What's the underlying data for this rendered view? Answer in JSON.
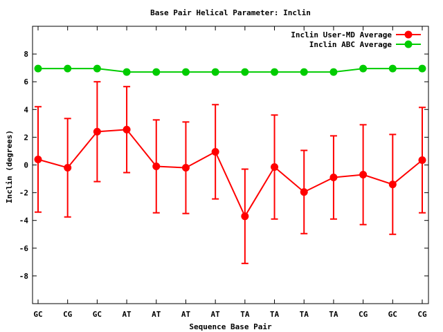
{
  "chart_data": {
    "type": "line",
    "title": "Base Pair Helical Parameter: Inclin",
    "xlabel": "Sequence Base Pair",
    "ylabel": "Inclin (degrees)",
    "categories": [
      "GC",
      "CG",
      "GC",
      "AT",
      "AT",
      "AT",
      "AT",
      "TA",
      "TA",
      "TA",
      "TA",
      "CG",
      "GC",
      "CG"
    ],
    "ylim": [
      -10,
      10
    ],
    "yticks": [
      -8,
      -6,
      -4,
      -2,
      0,
      2,
      4,
      6,
      8
    ],
    "grid": false,
    "legend_position": "top-right",
    "series": [
      {
        "name": "Inclin User-MD Average",
        "color": "#ff0000",
        "values": [
          0.4,
          -0.2,
          2.4,
          2.55,
          -0.1,
          -0.2,
          0.95,
          -3.7,
          -0.15,
          -1.95,
          -0.9,
          -0.7,
          -1.4,
          0.35
        ],
        "error": [
          3.8,
          3.55,
          3.6,
          3.1,
          3.35,
          3.3,
          3.4,
          3.4,
          3.75,
          3.0,
          3.0,
          3.6,
          3.6,
          3.8
        ]
      },
      {
        "name": "Inclin ABC Average",
        "color": "#00cc00",
        "values": [
          6.95,
          6.95,
          6.95,
          6.7,
          6.7,
          6.7,
          6.7,
          6.7,
          6.7,
          6.7,
          6.7,
          6.95,
          6.95,
          6.95
        ]
      }
    ]
  }
}
